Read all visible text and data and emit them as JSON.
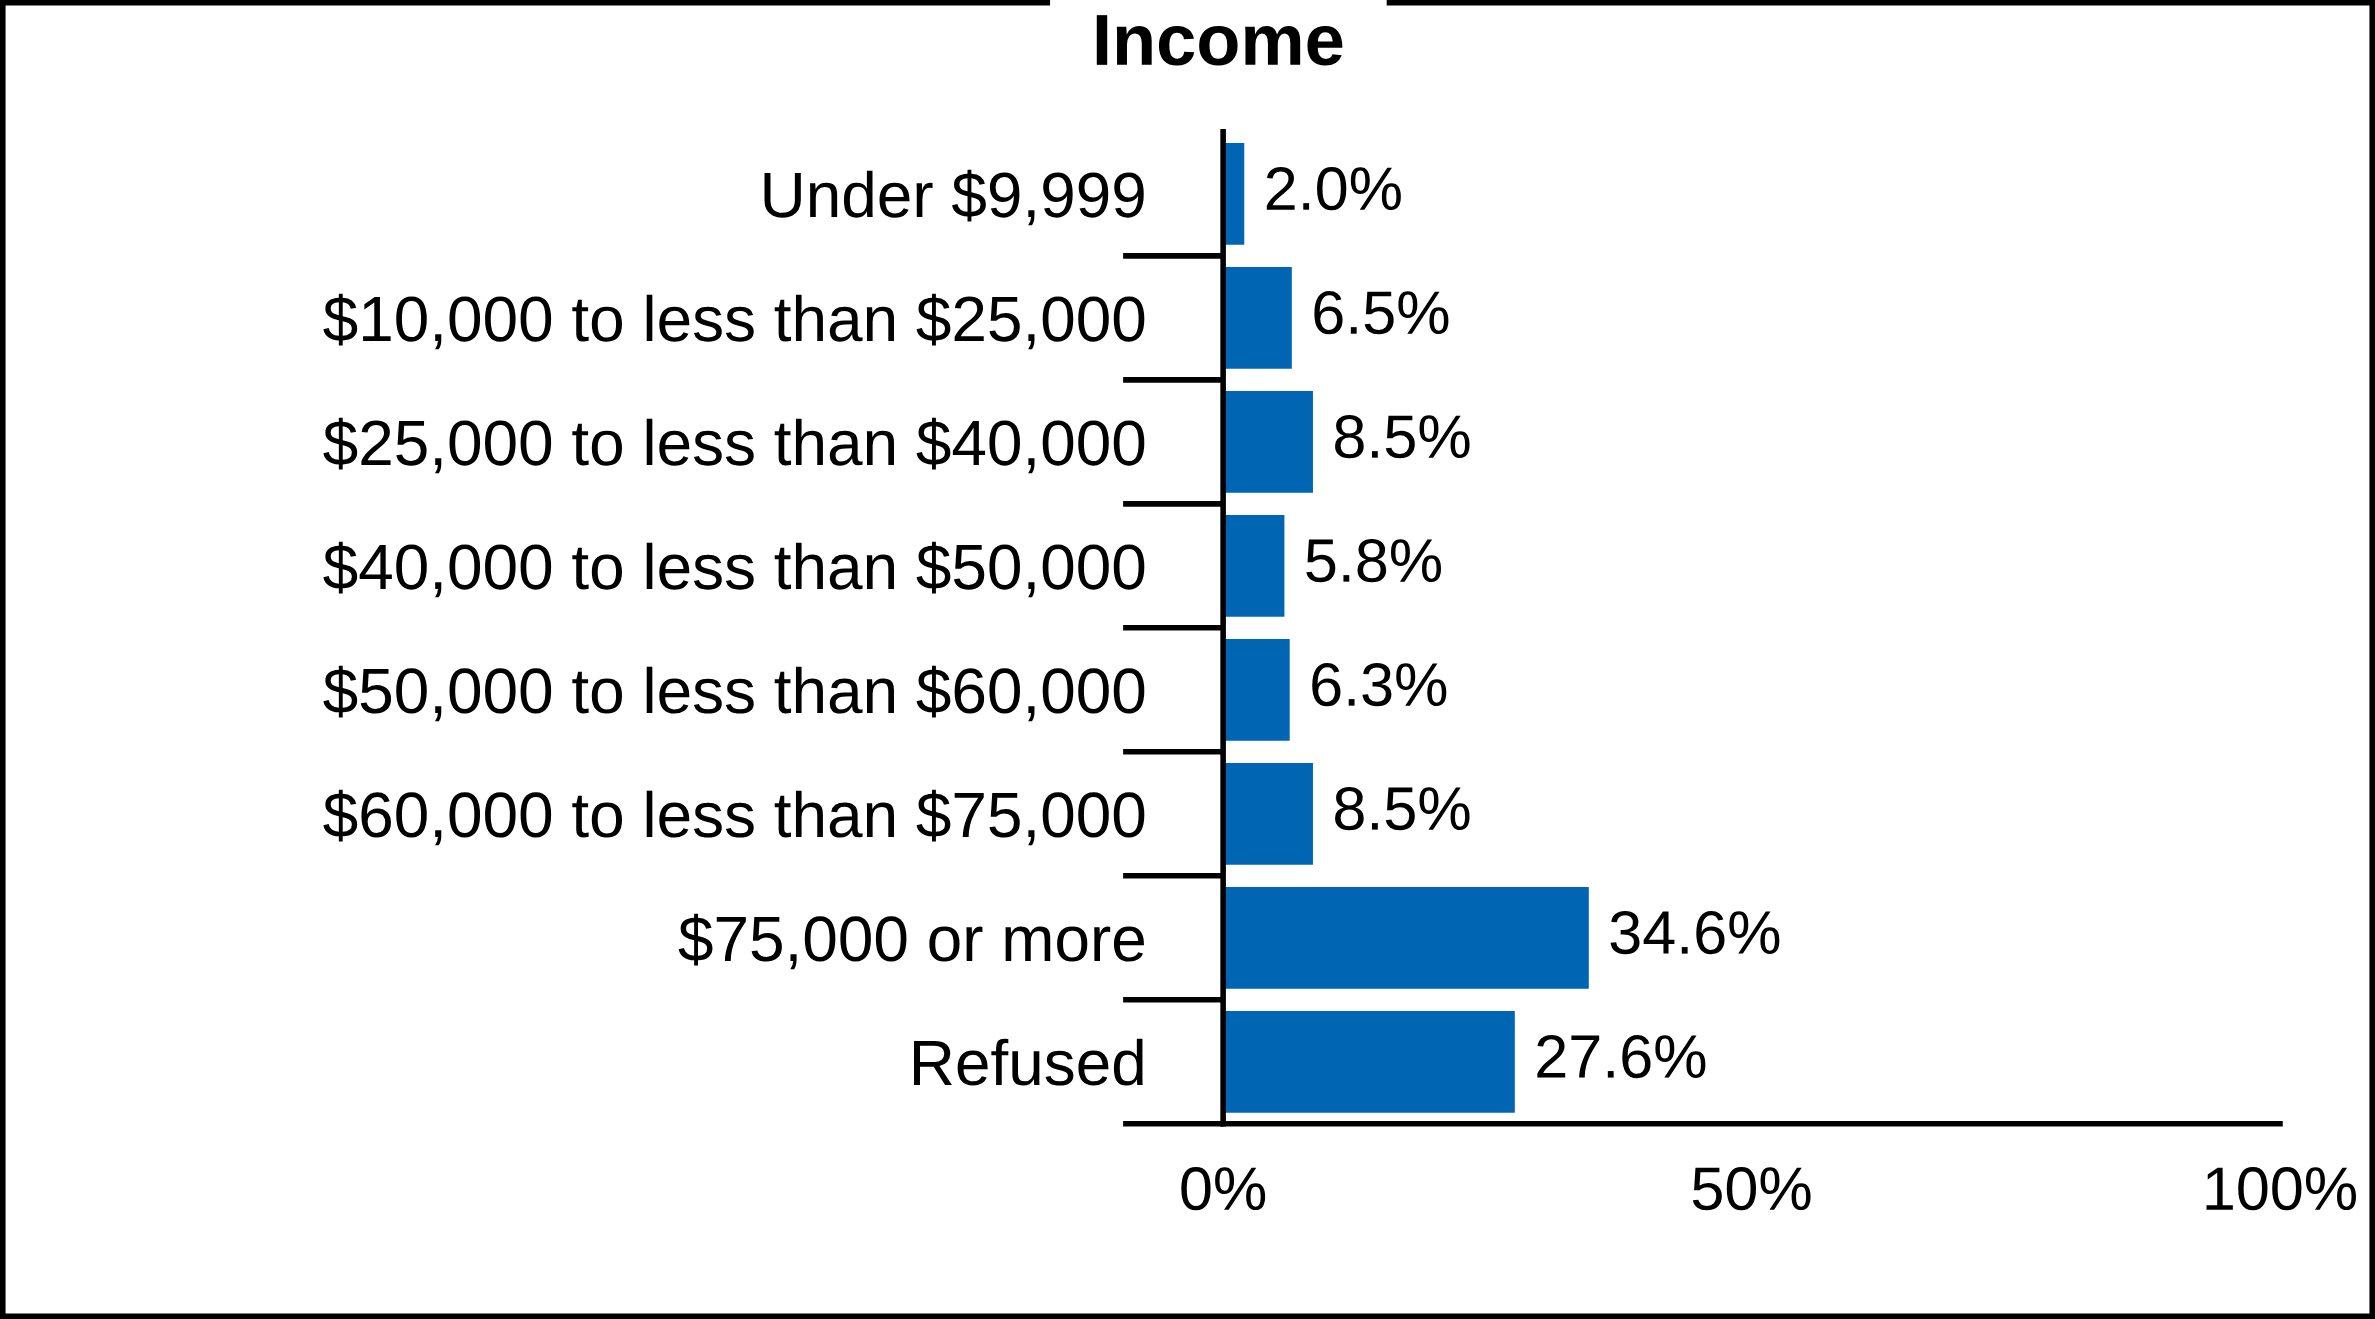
{
  "chart_data": {
    "type": "bar",
    "orientation": "horizontal",
    "title": "Income",
    "categories": [
      "Under $9,999",
      "$10,000 to less than $25,000",
      "$25,000 to less than $40,000",
      "$40,000 to less than $50,000",
      "$50,000 to less than $60,000",
      "$60,000 to less than $75,000",
      "$75,000 or more",
      "Refused"
    ],
    "values": [
      2.0,
      6.5,
      8.5,
      5.8,
      6.3,
      8.5,
      34.6,
      27.6
    ],
    "value_labels": [
      "2.0%",
      "6.5%",
      "8.5%",
      "5.8%",
      "6.3%",
      "8.5%",
      "34.6%",
      "27.6%"
    ],
    "color": "#0066b3",
    "xlim": [
      0,
      100
    ],
    "xticks": [
      {
        "value": 0,
        "label": "0%"
      },
      {
        "value": 50,
        "label": "50%"
      },
      {
        "value": 100,
        "label": "100%"
      }
    ],
    "grid": false,
    "legend": false
  }
}
